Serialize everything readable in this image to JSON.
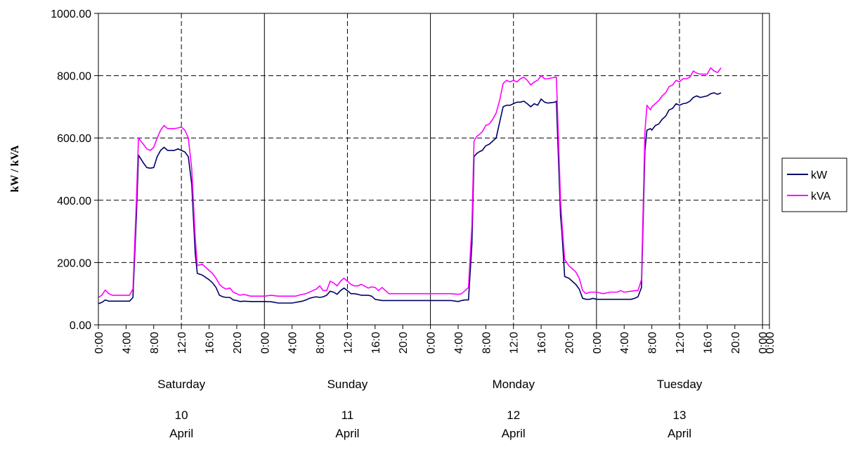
{
  "chart_data": {
    "type": "line",
    "title": "",
    "xlabel": "",
    "ylabel": "kW / kVA",
    "ylim": [
      0,
      1000
    ],
    "yticks": [
      "0.00",
      "200.00",
      "400.00",
      "600.00",
      "800.00",
      "1000.00"
    ],
    "xlim_hours": [
      0,
      97
    ],
    "x_tick_labels": [
      "0:00",
      "4:00",
      "8:00",
      "12:0",
      "16:0",
      "20:0",
      "0:00",
      "4:00",
      "8:00",
      "12:0",
      "16:0",
      "20:0",
      "0:00",
      "4:00",
      "8:00",
      "12:0",
      "16:0",
      "20:0",
      "0:00",
      "4:00",
      "8:00",
      "12:0",
      "16:0",
      "20:0",
      "0:00",
      "0:00"
    ],
    "days": [
      {
        "name": "Saturday",
        "date": "10",
        "month": "April"
      },
      {
        "name": "Sunday",
        "date": "11",
        "month": "April"
      },
      {
        "name": "Monday",
        "date": "12",
        "month": "April"
      },
      {
        "name": "Tuesday",
        "date": "13",
        "month": "April"
      }
    ],
    "grid": true,
    "legend_position": "right",
    "series": [
      {
        "name": "kW",
        "color": "#000066",
        "points": [
          [
            0,
            68
          ],
          [
            0.5,
            72
          ],
          [
            1,
            80
          ],
          [
            1.5,
            76
          ],
          [
            2,
            76
          ],
          [
            3,
            76
          ],
          [
            4,
            76
          ],
          [
            4.5,
            76
          ],
          [
            5,
            88
          ],
          [
            5.5,
            350
          ],
          [
            5.8,
            545
          ],
          [
            6.5,
            520
          ],
          [
            7,
            505
          ],
          [
            7.5,
            503
          ],
          [
            8,
            505
          ],
          [
            8.5,
            540
          ],
          [
            9,
            560
          ],
          [
            9.5,
            570
          ],
          [
            10,
            560
          ],
          [
            11,
            560
          ],
          [
            11.5,
            565
          ],
          [
            12,
            560
          ],
          [
            12.5,
            555
          ],
          [
            13,
            540
          ],
          [
            13.5,
            450
          ],
          [
            14,
            230
          ],
          [
            14.3,
            165
          ],
          [
            15,
            160
          ],
          [
            16,
            145
          ],
          [
            16.5,
            135
          ],
          [
            17,
            120
          ],
          [
            17.5,
            95
          ],
          [
            18,
            90
          ],
          [
            18.5,
            88
          ],
          [
            19,
            88
          ],
          [
            19.5,
            80
          ],
          [
            20,
            78
          ],
          [
            20.5,
            75
          ],
          [
            21,
            76
          ],
          [
            22,
            75
          ],
          [
            23,
            75
          ],
          [
            24,
            75
          ],
          [
            25,
            74
          ],
          [
            26,
            70
          ],
          [
            27,
            70
          ],
          [
            28,
            70
          ],
          [
            28.5,
            72
          ],
          [
            29,
            74
          ],
          [
            29.5,
            76
          ],
          [
            30,
            80
          ],
          [
            30.5,
            85
          ],
          [
            31,
            88
          ],
          [
            31.5,
            90
          ],
          [
            32,
            88
          ],
          [
            32.5,
            90
          ],
          [
            33,
            95
          ],
          [
            33.5,
            108
          ],
          [
            34,
            105
          ],
          [
            34.5,
            98
          ],
          [
            35,
            110
          ],
          [
            35.5,
            118
          ],
          [
            36,
            110
          ],
          [
            36.5,
            100
          ],
          [
            37,
            100
          ],
          [
            37.5,
            98
          ],
          [
            38,
            95
          ],
          [
            39,
            95
          ],
          [
            39.5,
            92
          ],
          [
            40,
            82
          ],
          [
            40.5,
            80
          ],
          [
            41,
            78
          ],
          [
            42,
            78
          ],
          [
            44,
            78
          ],
          [
            46,
            78
          ],
          [
            48,
            78
          ],
          [
            50,
            78
          ],
          [
            51,
            78
          ],
          [
            52,
            75
          ],
          [
            52.5,
            78
          ],
          [
            53,
            80
          ],
          [
            53.5,
            80
          ],
          [
            54,
            260
          ],
          [
            54.3,
            540
          ],
          [
            54.7,
            550
          ],
          [
            55,
            555
          ],
          [
            55.5,
            560
          ],
          [
            56,
            575
          ],
          [
            56.5,
            580
          ],
          [
            57,
            590
          ],
          [
            57.5,
            600
          ],
          [
            58,
            650
          ],
          [
            58.5,
            700
          ],
          [
            59,
            705
          ],
          [
            59.5,
            705
          ],
          [
            60,
            710
          ],
          [
            60.5,
            715
          ],
          [
            61,
            715
          ],
          [
            61.5,
            718
          ],
          [
            62,
            710
          ],
          [
            62.5,
            700
          ],
          [
            63,
            710
          ],
          [
            63.5,
            705
          ],
          [
            64,
            725
          ],
          [
            64.5,
            715
          ],
          [
            65,
            712
          ],
          [
            66,
            715
          ],
          [
            66.2,
            718
          ],
          [
            66.8,
            350
          ],
          [
            67,
            300
          ],
          [
            67.4,
            155
          ],
          [
            68,
            150
          ],
          [
            68.5,
            140
          ],
          [
            69,
            130
          ],
          [
            69.5,
            115
          ],
          [
            70,
            85
          ],
          [
            70.5,
            82
          ],
          [
            71,
            82
          ],
          [
            71.5,
            85
          ],
          [
            72,
            82
          ],
          [
            74,
            82
          ],
          [
            76,
            82
          ],
          [
            77,
            82
          ],
          [
            77.5,
            85
          ],
          [
            78,
            90
          ],
          [
            78.5,
            120
          ],
          [
            79,
            560
          ],
          [
            79.3,
            625
          ],
          [
            79.8,
            630
          ],
          [
            80,
            625
          ],
          [
            80.5,
            640
          ],
          [
            81,
            645
          ],
          [
            81.5,
            660
          ],
          [
            82,
            670
          ],
          [
            82.5,
            690
          ],
          [
            83,
            695
          ],
          [
            83.5,
            710
          ],
          [
            84,
            705
          ],
          [
            84.5,
            710
          ],
          [
            85,
            712
          ],
          [
            85.5,
            718
          ],
          [
            86,
            730
          ],
          [
            86.5,
            735
          ],
          [
            87,
            730
          ],
          [
            88,
            735
          ],
          [
            88.5,
            742
          ],
          [
            89,
            745
          ],
          [
            89.5,
            740
          ],
          [
            90,
            745
          ]
        ]
      },
      {
        "name": "kVA",
        "color": "#FF00FF",
        "points": [
          [
            0,
            88
          ],
          [
            0.5,
            95
          ],
          [
            1,
            112
          ],
          [
            1.5,
            100
          ],
          [
            2,
            95
          ],
          [
            3,
            95
          ],
          [
            4,
            95
          ],
          [
            4.5,
            95
          ],
          [
            5,
            115
          ],
          [
            5.5,
            400
          ],
          [
            5.8,
            600
          ],
          [
            6.5,
            580
          ],
          [
            7,
            565
          ],
          [
            7.5,
            560
          ],
          [
            8,
            570
          ],
          [
            8.5,
            600
          ],
          [
            9,
            625
          ],
          [
            9.5,
            640
          ],
          [
            10,
            630
          ],
          [
            11,
            630
          ],
          [
            11.5,
            632
          ],
          [
            12,
            635
          ],
          [
            12.5,
            625
          ],
          [
            13,
            600
          ],
          [
            13.5,
            500
          ],
          [
            14,
            280
          ],
          [
            14.3,
            190
          ],
          [
            15,
            195
          ],
          [
            16,
            175
          ],
          [
            16.5,
            165
          ],
          [
            17,
            150
          ],
          [
            17.5,
            130
          ],
          [
            18,
            120
          ],
          [
            18.5,
            115
          ],
          [
            19,
            118
          ],
          [
            19.5,
            105
          ],
          [
            20,
            100
          ],
          [
            20.5,
            95
          ],
          [
            21,
            98
          ],
          [
            22,
            92
          ],
          [
            23,
            92
          ],
          [
            24,
            92
          ],
          [
            25,
            95
          ],
          [
            26,
            92
          ],
          [
            27,
            92
          ],
          [
            28,
            92
          ],
          [
            28.5,
            92
          ],
          [
            29,
            95
          ],
          [
            29.5,
            98
          ],
          [
            30,
            100
          ],
          [
            30.5,
            105
          ],
          [
            31,
            110
          ],
          [
            31.5,
            115
          ],
          [
            32,
            125
          ],
          [
            32.5,
            110
          ],
          [
            33,
            110
          ],
          [
            33.5,
            140
          ],
          [
            34,
            135
          ],
          [
            34.5,
            125
          ],
          [
            35,
            140
          ],
          [
            35.5,
            150
          ],
          [
            36,
            140
          ],
          [
            36.5,
            130
          ],
          [
            37,
            125
          ],
          [
            37.5,
            125
          ],
          [
            38,
            130
          ],
          [
            39,
            118
          ],
          [
            39.5,
            122
          ],
          [
            40,
            120
          ],
          [
            40.5,
            110
          ],
          [
            41,
            120
          ],
          [
            42,
            100
          ],
          [
            44,
            100
          ],
          [
            46,
            100
          ],
          [
            48,
            100
          ],
          [
            50,
            100
          ],
          [
            51,
            100
          ],
          [
            52,
            98
          ],
          [
            52.5,
            100
          ],
          [
            53,
            110
          ],
          [
            53.5,
            120
          ],
          [
            54,
            320
          ],
          [
            54.3,
            590
          ],
          [
            54.7,
            605
          ],
          [
            55,
            610
          ],
          [
            55.5,
            620
          ],
          [
            56,
            640
          ],
          [
            56.5,
            645
          ],
          [
            57,
            660
          ],
          [
            57.5,
            680
          ],
          [
            58,
            720
          ],
          [
            58.5,
            775
          ],
          [
            59,
            785
          ],
          [
            59.5,
            780
          ],
          [
            60,
            785
          ],
          [
            60.5,
            780
          ],
          [
            61,
            790
          ],
          [
            61.5,
            795
          ],
          [
            62,
            785
          ],
          [
            62.5,
            770
          ],
          [
            63,
            780
          ],
          [
            63.5,
            785
          ],
          [
            64,
            800
          ],
          [
            64.5,
            790
          ],
          [
            65,
            790
          ],
          [
            66,
            795
          ],
          [
            66.2,
            795
          ],
          [
            66.8,
            400
          ],
          [
            67,
            330
          ],
          [
            67.4,
            210
          ],
          [
            68,
            190
          ],
          [
            68.5,
            180
          ],
          [
            69,
            170
          ],
          [
            69.5,
            150
          ],
          [
            70,
            110
          ],
          [
            70.5,
            100
          ],
          [
            71,
            105
          ],
          [
            71.5,
            105
          ],
          [
            72,
            105
          ],
          [
            73,
            100
          ],
          [
            74,
            105
          ],
          [
            75,
            105
          ],
          [
            75.5,
            110
          ],
          [
            76,
            105
          ],
          [
            77,
            108
          ],
          [
            77.5,
            110
          ],
          [
            78,
            110
          ],
          [
            78.5,
            145
          ],
          [
            79,
            620
          ],
          [
            79.3,
            705
          ],
          [
            79.8,
            690
          ],
          [
            80,
            700
          ],
          [
            80.5,
            710
          ],
          [
            81,
            720
          ],
          [
            81.5,
            735
          ],
          [
            82,
            745
          ],
          [
            82.5,
            765
          ],
          [
            83,
            770
          ],
          [
            83.5,
            785
          ],
          [
            84,
            780
          ],
          [
            84.5,
            790
          ],
          [
            85,
            790
          ],
          [
            85.5,
            795
          ],
          [
            86,
            815
          ],
          [
            86.5,
            808
          ],
          [
            87,
            805
          ],
          [
            88,
            805
          ],
          [
            88.5,
            825
          ],
          [
            89,
            815
          ],
          [
            89.5,
            810
          ],
          [
            90,
            825
          ]
        ]
      }
    ]
  }
}
